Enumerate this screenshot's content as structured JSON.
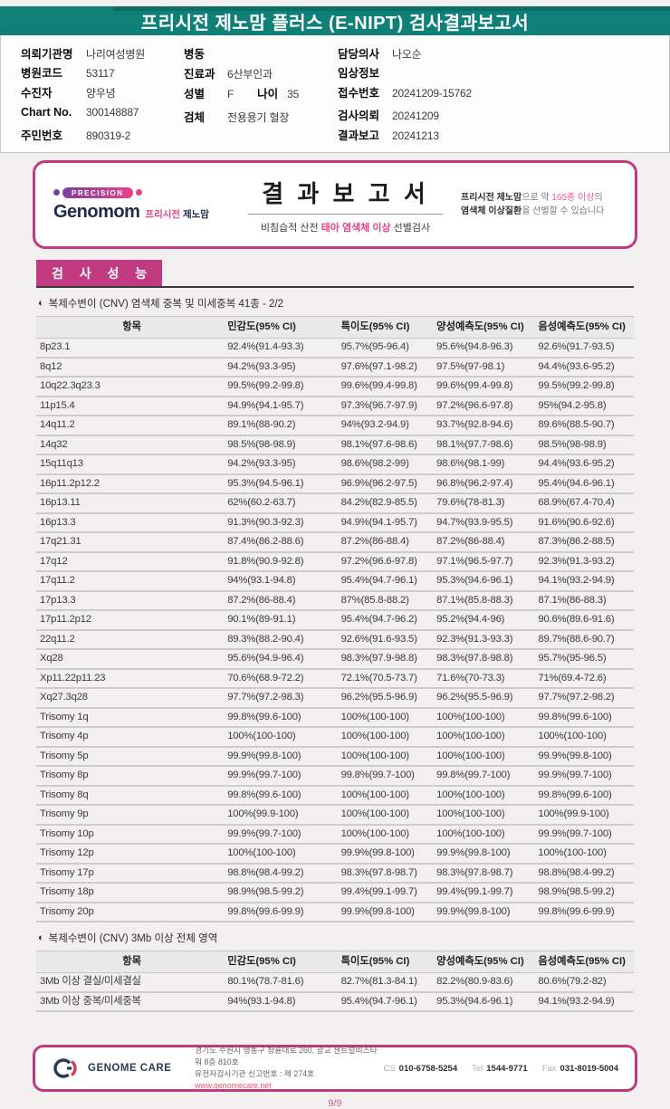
{
  "colors": {
    "teal": "#0F8077",
    "magenta": "#C23A80",
    "pink": "#E8418C"
  },
  "header": {
    "title": "프리시전 제노맘 플러스 (E-NIPT) 검사결과보고서"
  },
  "patient_info": {
    "col1": [
      {
        "label": "의뢰기관명",
        "value": "나리여성병원"
      },
      {
        "label": "병원코드",
        "value": "53117"
      },
      {
        "label": "수진자",
        "value": "양우녕"
      },
      {
        "label": "Chart No.",
        "value": "300148887"
      },
      {
        "label": "주민번호",
        "value": "890319-2"
      }
    ],
    "col2": [
      {
        "label": "병동",
        "value": ""
      },
      {
        "label": "진료과",
        "value": "6산부인과"
      },
      {
        "label": "성별",
        "value": "F",
        "label2": "나이",
        "value2": "35"
      },
      {
        "label": "검체",
        "value": "전용용기 혈장"
      }
    ],
    "col3": [
      {
        "label": "담당의사",
        "value": "나오순"
      },
      {
        "label": "임상정보",
        "value": ""
      },
      {
        "label": "접수번호",
        "value": "20241209-15762"
      },
      {
        "label": "검사의뢰",
        "value": "20241209"
      },
      {
        "label": "결과보고",
        "value": "20241213"
      }
    ]
  },
  "banner": {
    "precision_badge": "PRECISION",
    "brand": "Genomom",
    "brand_kr_pink": "프리시전",
    "brand_kr_dark": "제노맘",
    "title": "결 과 보 고 서",
    "subtitle_prefix": "비침습적 산전 ",
    "subtitle_highlight": "태아 염색체 이상",
    "subtitle_suffix": " 선별검사",
    "note_bold1": "프리시전 제노맘",
    "note_text1": "으로 약 ",
    "note_pink": "165종 이상",
    "note_text2": "의 ",
    "note_bold2": "염색체 이상질환",
    "note_text3": "을 선별할 수 있습니다"
  },
  "section": {
    "title": "검 사 성 능"
  },
  "table1": {
    "bullet": "◐",
    "title": "복제수변이 (CNV) 염색체 중복 및 미세중복 41종 - 2/2",
    "headers": [
      "항목",
      "민감도(95% CI)",
      "특이도(95% CI)",
      "양성예측도(95% CI)",
      "음성예측도(95% CI)"
    ],
    "rows": [
      [
        "8p23.1",
        "92.4%(91.4-93.3)",
        "95.7%(95-96.4)",
        "95.6%(94.8-96.3)",
        "92.6%(91.7-93.5)"
      ],
      [
        "8q12",
        "94.2%(93.3-95)",
        "97.6%(97.1-98.2)",
        "97.5%(97-98.1)",
        "94.4%(93.6-95.2)"
      ],
      [
        "10q22.3q23.3",
        "99.5%(99.2-99.8)",
        "99.6%(99.4-99.8)",
        "99.6%(99.4-99.8)",
        "99.5%(99.2-99.8)"
      ],
      [
        "11p15.4",
        "94.9%(94.1-95.7)",
        "97.3%(96.7-97.9)",
        "97.2%(96.6-97.8)",
        "95%(94.2-95.8)"
      ],
      [
        "14q11.2",
        "89.1%(88-90.2)",
        "94%(93.2-94.9)",
        "93.7%(92.8-94.6)",
        "89.6%(88.5-90.7)"
      ],
      [
        "14q32",
        "98.5%(98-98.9)",
        "98.1%(97.6-98.6)",
        "98.1%(97.7-98.6)",
        "98.5%(98-98.9)"
      ],
      [
        "15q11q13",
        "94.2%(93.3-95)",
        "98.6%(98.2-99)",
        "98.6%(98.1-99)",
        "94.4%(93.6-95.2)"
      ],
      [
        "16p11.2p12.2",
        "95.3%(94.5-96.1)",
        "96.9%(96.2-97.5)",
        "96.8%(96.2-97.4)",
        "95.4%(94.6-96.1)"
      ],
      [
        "16p13.11",
        "62%(60.2-63.7)",
        "84.2%(82.9-85.5)",
        "79.6%(78-81.3)",
        "68.9%(67.4-70.4)"
      ],
      [
        "16p13.3",
        "91.3%(90.3-92.3)",
        "94.9%(94.1-95.7)",
        "94.7%(93.9-95.5)",
        "91.6%(90.6-92.6)"
      ],
      [
        "17q21.31",
        "87.4%(86.2-88.6)",
        "87.2%(86-88.4)",
        "87.2%(86-88.4)",
        "87.3%(86.2-88.5)"
      ],
      [
        "17q12",
        "91.8%(90.9-92.8)",
        "97.2%(96.6-97.8)",
        "97.1%(96.5-97.7)",
        "92.3%(91.3-93.2)"
      ],
      [
        "17q11.2",
        "94%(93.1-94.8)",
        "95.4%(94.7-96.1)",
        "95.3%(94.6-96.1)",
        "94.1%(93.2-94.9)"
      ],
      [
        "17p13.3",
        "87.2%(86-88.4)",
        "87%(85.8-88.2)",
        "87.1%(85.8-88.3)",
        "87.1%(86-88.3)"
      ],
      [
        "17p11.2p12",
        "90.1%(89-91.1)",
        "95.4%(94.7-96.2)",
        "95.2%(94.4-96)",
        "90.6%(89.6-91.6)"
      ],
      [
        "22q11.2",
        "89.3%(88.2-90.4)",
        "92.6%(91.6-93.5)",
        "92.3%(91.3-93.3)",
        "89.7%(88.6-90.7)"
      ],
      [
        "Xq28",
        "95.6%(94.9-96.4)",
        "98.3%(97.9-98.8)",
        "98.3%(97.8-98.8)",
        "95.7%(95-96.5)"
      ],
      [
        "Xp11.22p11.23",
        "70.6%(68.9-72.2)",
        "72.1%(70.5-73.7)",
        "71.6%(70-73.3)",
        "71%(69.4-72.6)"
      ],
      [
        "Xq27.3q28",
        "97.7%(97.2-98.3)",
        "96.2%(95.5-96.9)",
        "96.2%(95.5-96.9)",
        "97.7%(97.2-98.2)"
      ],
      [
        "Trisomy 1q",
        "99.8%(99.6-100)",
        "100%(100-100)",
        "100%(100-100)",
        "99.8%(99.6-100)"
      ],
      [
        "Trisomy 4p",
        "100%(100-100)",
        "100%(100-100)",
        "100%(100-100)",
        "100%(100-100)"
      ],
      [
        "Trisomy 5p",
        "99.9%(99.8-100)",
        "100%(100-100)",
        "100%(100-100)",
        "99.9%(99.8-100)"
      ],
      [
        "Trisomy 8p",
        "99.9%(99.7-100)",
        "99.8%(99.7-100)",
        "99.8%(99.7-100)",
        "99.9%(99.7-100)"
      ],
      [
        "Trisomy 8q",
        "99.8%(99.6-100)",
        "100%(100-100)",
        "100%(100-100)",
        "99.8%(99.6-100)"
      ],
      [
        "Trisomy 9p",
        "100%(99.9-100)",
        "100%(100-100)",
        "100%(100-100)",
        "100%(99.9-100)"
      ],
      [
        "Trisomy 10p",
        "99.9%(99.7-100)",
        "100%(100-100)",
        "100%(100-100)",
        "99.9%(99.7-100)"
      ],
      [
        "Trisomy 12p",
        "100%(100-100)",
        "99.9%(99.8-100)",
        "99.9%(99.8-100)",
        "100%(100-100)"
      ],
      [
        "Trisomy 17p",
        "98.8%(98.4-99.2)",
        "98.3%(97.8-98.7)",
        "98.3%(97.8-98.7)",
        "98.8%(98.4-99.2)"
      ],
      [
        "Trisomy 18p",
        "98.9%(98.5-99.2)",
        "99.4%(99.1-99.7)",
        "99.4%(99.1-99.7)",
        "98.9%(98.5-99.2)"
      ],
      [
        "Trisomy 20p",
        "99.8%(99.6-99.9)",
        "99.9%(99.8-100)",
        "99.9%(99.8-100)",
        "99.8%(99.6-99.9)"
      ]
    ]
  },
  "table2": {
    "bullet": "◐",
    "title": "복제수변이 (CNV) 3Mb 이상 전체 영역",
    "headers": [
      "항목",
      "민감도(95% CI)",
      "특이도(95% CI)",
      "양성예측도(95% CI)",
      "음성예측도(95% CI)"
    ],
    "rows": [
      [
        "3Mb 이상 결실/미세결실",
        "80.1%(78.7-81.6)",
        "82.7%(81.3-84.1)",
        "82.2%(80.9-83.6)",
        "80.6%(79.2-82)"
      ],
      [
        "3Mb 이상 중복/미세중복",
        "94%(93.1-94.8)",
        "95.4%(94.7-96.1)",
        "95.3%(94.6-96.1)",
        "94.1%(93.2-94.9)"
      ]
    ]
  },
  "footer": {
    "brand": "GENOME CARE",
    "address_line1": "경기도 수원시 영통구 창룡대로 260, 광교 센트럴비즈타워 8층 810호",
    "address_line2": "유전자검사기관 신고번호 : 제 274호",
    "website": "www.genomecare.net",
    "contacts": [
      {
        "label": "CS",
        "value": "010-6758-5254"
      },
      {
        "label": "Tel",
        "value": "1544-9771"
      },
      {
        "label": "Fax",
        "value": "031-8019-5004"
      }
    ]
  },
  "page": {
    "number": "9/9"
  }
}
